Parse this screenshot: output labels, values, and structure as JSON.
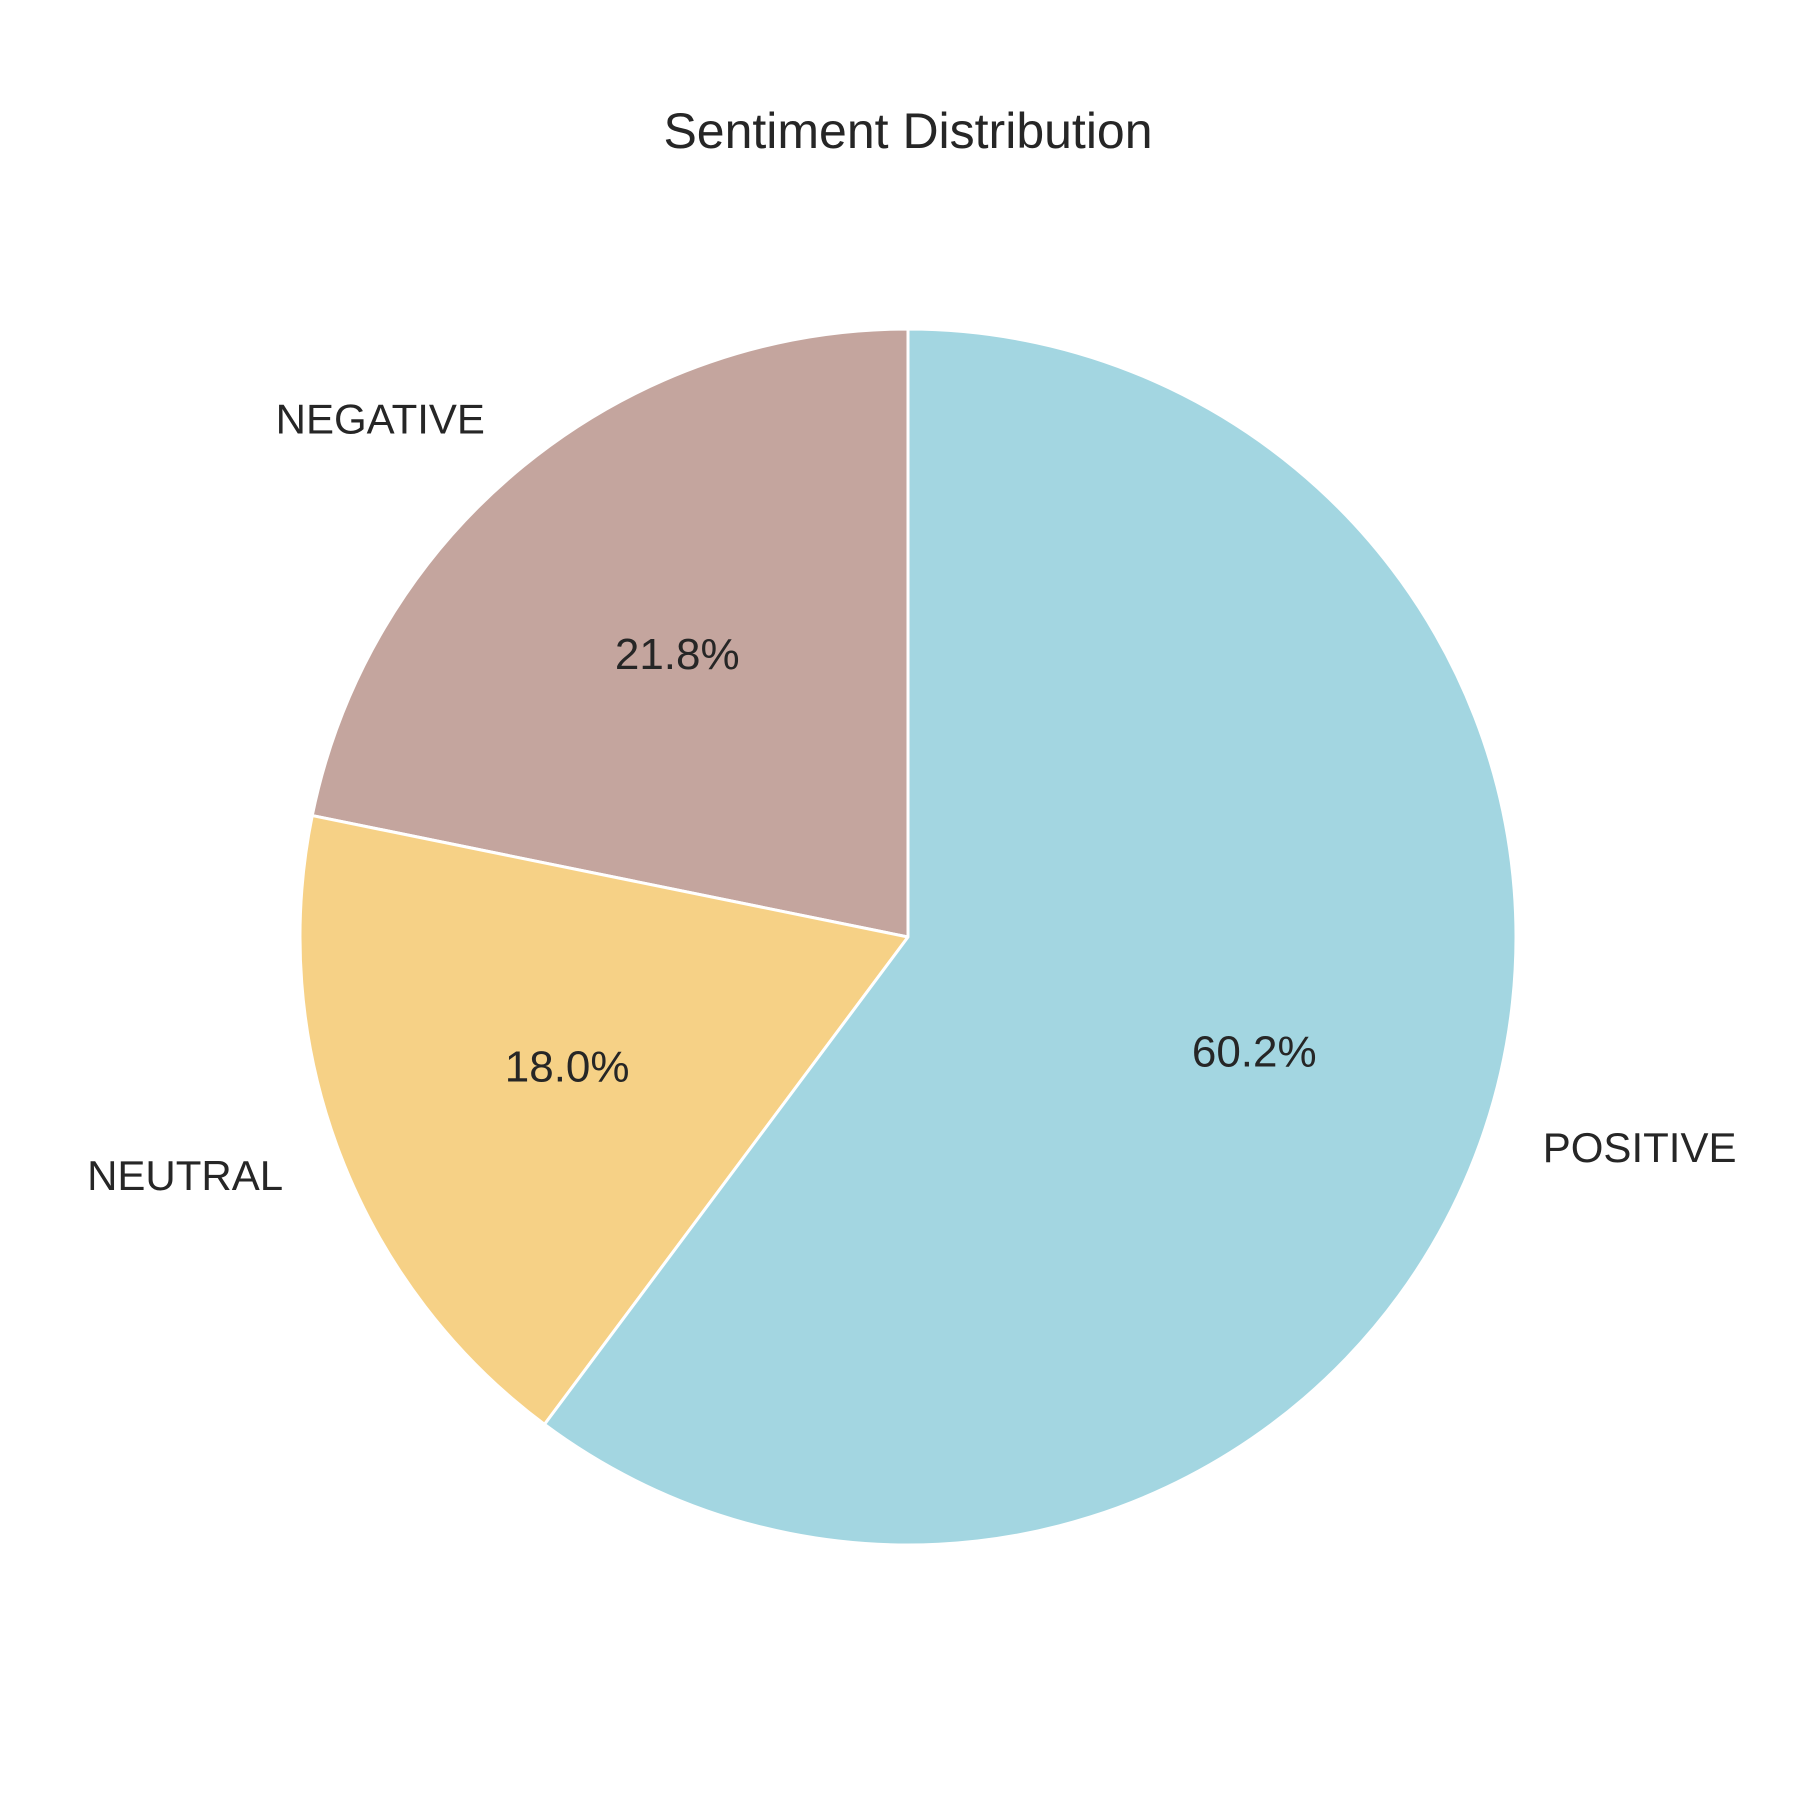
{
  "chart_data": {
    "type": "pie",
    "title": "Sentiment Distribution",
    "slices": [
      {
        "label": "NEGATIVE",
        "value": 21.8,
        "pct_label": "21.8%",
        "color": "#c4a59e"
      },
      {
        "label": "NEUTRAL",
        "value": 18.0,
        "pct_label": "18.0%",
        "color": "#f6d186"
      },
      {
        "label": "POSITIVE",
        "value": 60.2,
        "pct_label": "60.2%",
        "color": "#a3d6e1"
      }
    ],
    "wedge_edge_color": "#ffffff",
    "text_color": "#262626",
    "background": "#ffffff"
  }
}
